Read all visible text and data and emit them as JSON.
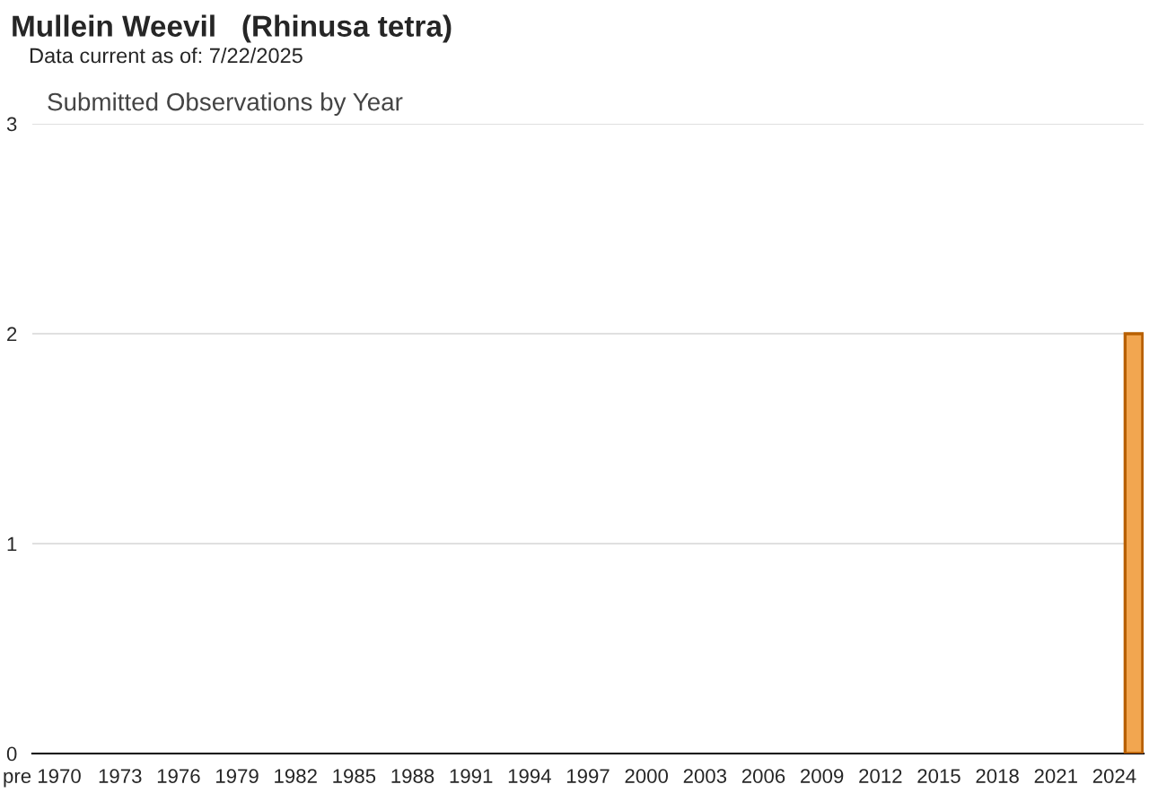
{
  "chart_data": {
    "type": "bar",
    "title": "Mullein Weevil   (Rhinusa tetra)",
    "subtitle": "Data current as of: 7/22/2025",
    "annotations": [
      "Submitted Observations by Year"
    ],
    "categories": [
      "pre 1970",
      null,
      null,
      null,
      "1973",
      null,
      null,
      "1976",
      null,
      null,
      "1979",
      null,
      null,
      "1982",
      null,
      null,
      "1985",
      null,
      null,
      "1988",
      null,
      null,
      "1991",
      null,
      null,
      "1994",
      null,
      null,
      "1997",
      null,
      null,
      "2000",
      null,
      null,
      "2003",
      null,
      null,
      "2006",
      null,
      null,
      "2009",
      null,
      null,
      "2012",
      null,
      null,
      "2015",
      null,
      null,
      "2018",
      null,
      null,
      "2021",
      null,
      null,
      "2024",
      null
    ],
    "values": [
      0,
      0,
      0,
      0,
      0,
      0,
      0,
      0,
      0,
      0,
      0,
      0,
      0,
      0,
      0,
      0,
      0,
      0,
      0,
      0,
      0,
      0,
      0,
      0,
      0,
      0,
      0,
      0,
      0,
      0,
      0,
      0,
      0,
      0,
      0,
      0,
      0,
      0,
      0,
      0,
      0,
      0,
      0,
      0,
      0,
      0,
      0,
      0,
      0,
      0,
      0,
      0,
      0,
      0,
      0,
      0,
      2
    ],
    "color": "#f2a650",
    "ylim": [
      0,
      3
    ],
    "yticks": [
      0,
      1,
      2,
      3
    ],
    "grid": "y",
    "legend": false
  }
}
